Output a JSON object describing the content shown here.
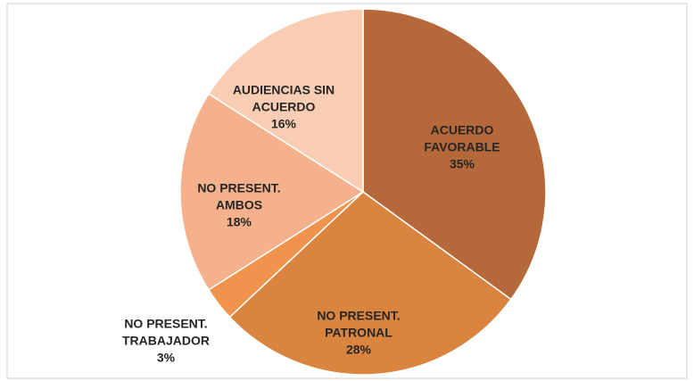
{
  "chart_data": {
    "type": "pie",
    "categories": [
      "ACUERDO FAVORABLE",
      "NO PRESENT. PATRONAL",
      "NO PRESENT. TRABAJADOR",
      "NO PRESENT. AMBOS",
      "AUDIENCIAS SIN ACUERDO"
    ],
    "values": [
      35,
      28,
      3,
      18,
      16
    ],
    "value_labels": [
      "35%",
      "28%",
      "3%",
      "18%",
      "16%"
    ],
    "colors": [
      "#b5693a",
      "#d9843f",
      "#f0934c",
      "#f4b18c",
      "#f9cdb4"
    ]
  }
}
